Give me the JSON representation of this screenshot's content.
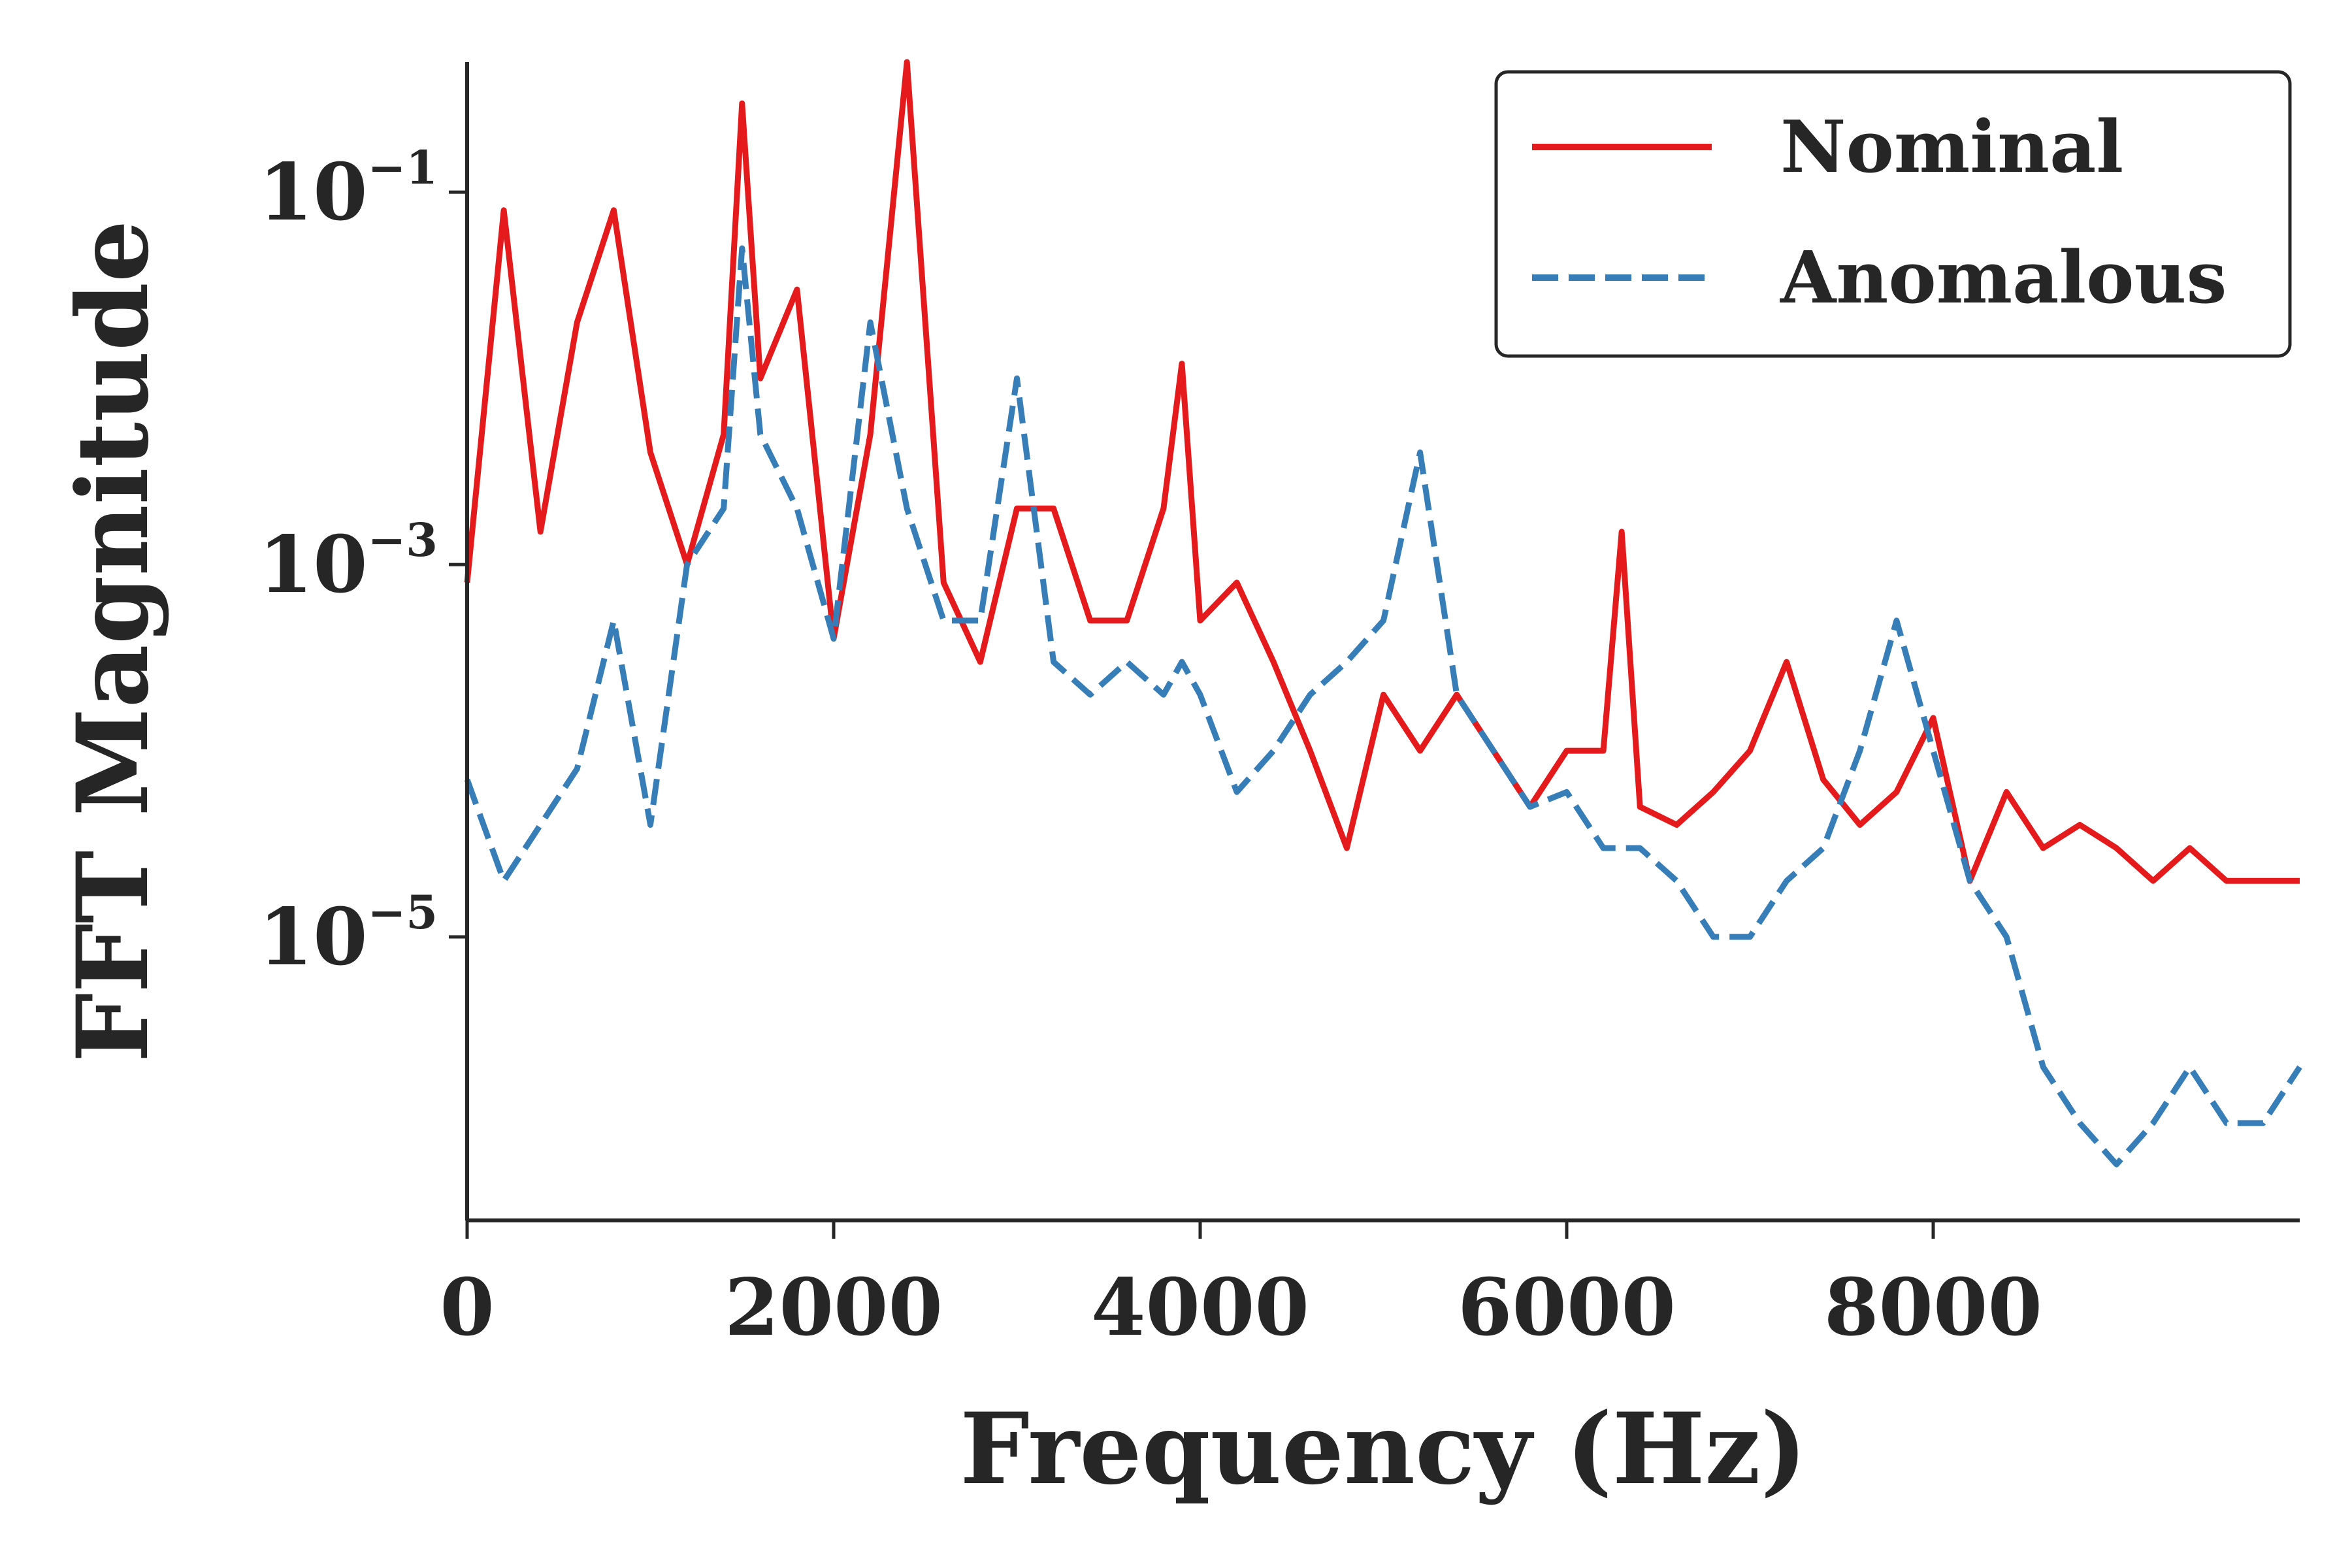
{
  "chart_data": {
    "type": "line",
    "title": "",
    "xlabel": "Frequency (Hz)",
    "ylabel": "FFT Magnitude",
    "xlim": [
      0,
      10000
    ],
    "ylim": [
      3e-07,
      0.5
    ],
    "yscale": "log",
    "grid": false,
    "legend_position": "top-right",
    "x_ticks": [
      0,
      2000,
      4000,
      6000,
      8000
    ],
    "x_tick_labels": [
      "0",
      "2000",
      "4000",
      "6000",
      "8000"
    ],
    "y_ticks": [
      {
        "value": 0.1,
        "base": "10",
        "exp": "−1"
      },
      {
        "value": 0.001,
        "base": "10",
        "exp": "−3"
      },
      {
        "value": 1e-05,
        "base": "10",
        "exp": "−5"
      }
    ],
    "x": [
      0,
      200,
      400,
      600,
      800,
      1000,
      1200,
      1400,
      1500,
      1600,
      1800,
      2000,
      2200,
      2400,
      2600,
      2800,
      3000,
      3200,
      3400,
      3600,
      3800,
      3900,
      4000,
      4200,
      4400,
      4600,
      4800,
      5000,
      5200,
      5400,
      5600,
      5800,
      6000,
      6200,
      6300,
      6400,
      6600,
      6800,
      7000,
      7200,
      7400,
      7600,
      7800,
      8000,
      8200,
      8400,
      8600,
      8800,
      9000,
      9200,
      9400,
      9600,
      9800,
      10000
    ],
    "series": [
      {
        "name": "Nominal",
        "color": "#e41a1c",
        "style": "solid",
        "values": [
          0.0008,
          0.08,
          0.0015,
          0.02,
          0.08,
          0.004,
          0.001,
          0.005,
          0.3,
          0.01,
          0.03,
          0.0004,
          0.005,
          0.5,
          0.0008,
          0.0003,
          0.002,
          0.002,
          0.0005,
          0.0005,
          0.002,
          0.012,
          0.0005,
          0.0008,
          0.0003,
          0.0001,
          3e-05,
          0.0002,
          0.0001,
          0.0002,
          0.0001,
          5e-05,
          0.0001,
          0.0001,
          0.0015,
          5e-05,
          4e-05,
          6e-05,
          0.0001,
          0.0003,
          7e-05,
          4e-05,
          6e-05,
          0.00015,
          2e-05,
          6e-05,
          3e-05,
          4e-05,
          3e-05,
          2e-05,
          3e-05,
          2e-05,
          2e-05,
          2e-05
        ]
      },
      {
        "name": "Anomalous",
        "color": "#377eb8",
        "style": "dashed",
        "values": [
          7e-05,
          2e-05,
          4e-05,
          8e-05,
          0.0005,
          4e-05,
          0.001,
          0.002,
          0.05,
          0.005,
          0.002,
          0.0004,
          0.02,
          0.002,
          0.0005,
          0.0005,
          0.01,
          0.0003,
          0.0002,
          0.0003,
          0.0002,
          0.0003,
          0.0002,
          6e-05,
          0.0001,
          0.0002,
          0.0003,
          0.0005,
          0.004,
          0.0002,
          0.0001,
          5e-05,
          6e-05,
          3e-05,
          3e-05,
          3e-05,
          2e-05,
          1e-05,
          1e-05,
          2e-05,
          3e-05,
          0.0001,
          0.0005,
          0.0001,
          2e-05,
          1e-05,
          2e-06,
          1e-06,
          6e-07,
          1e-06,
          2e-06,
          1e-06,
          1e-06,
          2e-06
        ]
      }
    ]
  }
}
